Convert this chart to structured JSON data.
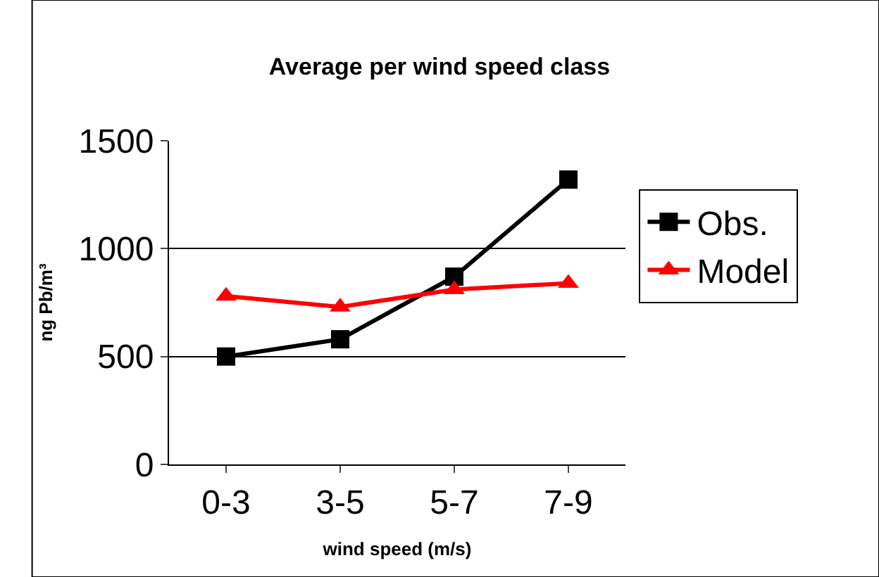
{
  "chart_data": {
    "type": "line",
    "title": "Average per wind speed class",
    "xlabel": "wind speed (m/s)",
    "ylabel": "ng Pb/m³",
    "categories": [
      "0-3",
      "3-5",
      "5-7",
      "7-9"
    ],
    "series": [
      {
        "name": "Obs.",
        "color": "#000000",
        "values": [
          500,
          580,
          870,
          1320
        ],
        "marker": "square"
      },
      {
        "name": "Model",
        "color": "#ff0000",
        "values": [
          780,
          730,
          810,
          840
        ],
        "marker": "triangle"
      }
    ],
    "ylim": [
      0,
      1500
    ],
    "yticks": [
      0,
      500,
      1000,
      1500
    ],
    "grid": "y",
    "legend": "right",
    "line_style": "solid"
  }
}
